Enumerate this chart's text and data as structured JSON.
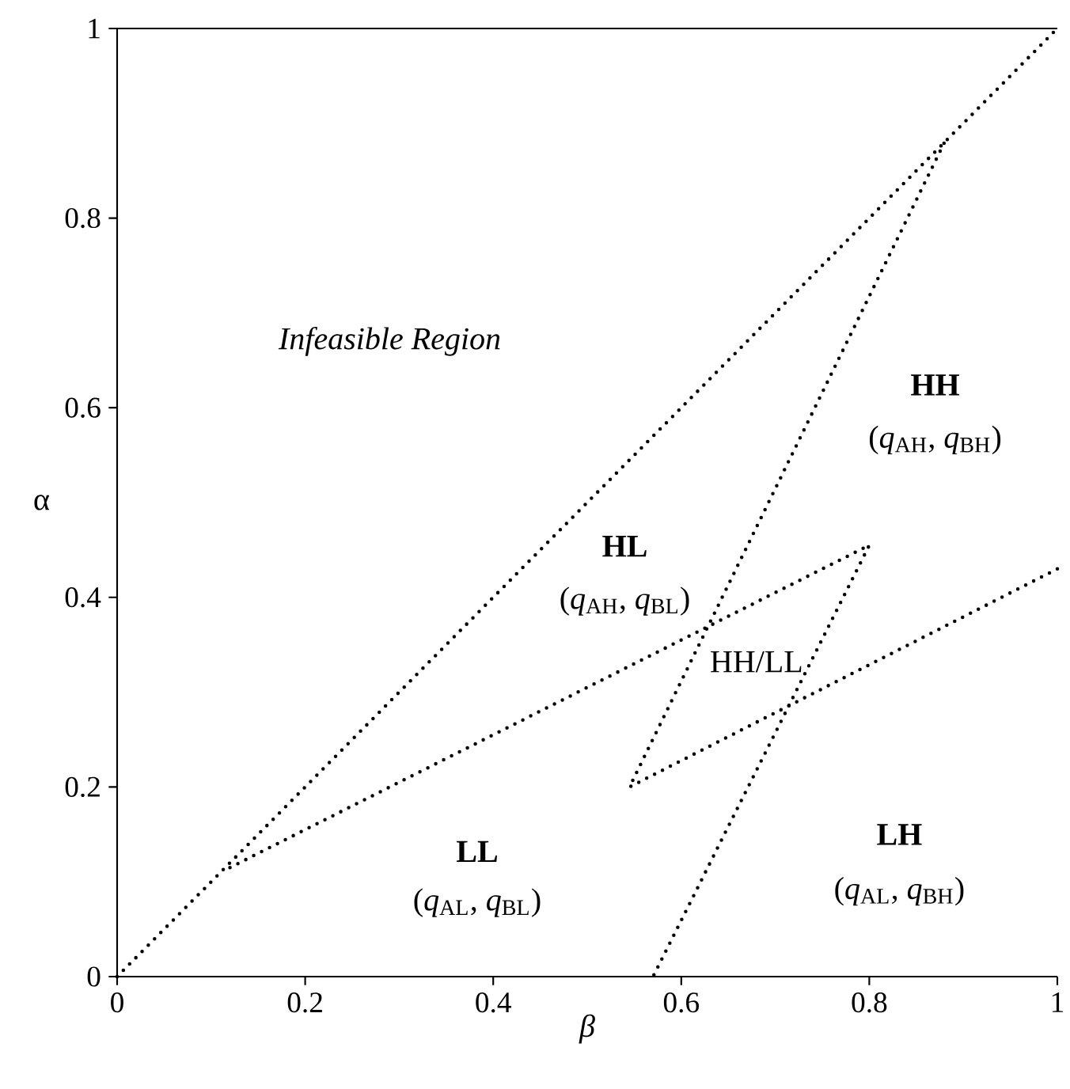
{
  "chart_data": {
    "type": "line",
    "xlabel": "β",
    "ylabel": "α",
    "xlim": [
      0,
      1
    ],
    "ylim": [
      0,
      1
    ],
    "xticks": [
      0,
      0.2,
      0.4,
      0.6,
      0.8,
      1
    ],
    "yticks": [
      0,
      0.2,
      0.4,
      0.6,
      0.8,
      1
    ],
    "grid": false,
    "marker": "none",
    "line_style": "dotted",
    "series": [
      {
        "color": "#000000",
        "x": [
          0,
          1
        ],
        "values": [
          0,
          1
        ]
      },
      {
        "color": "#000000",
        "x": [
          0.12,
          0.8,
          0.57
        ],
        "values": [
          0.115,
          0.455,
          0
        ]
      },
      {
        "color": "#000000",
        "x": [
          1,
          0.545,
          0.88
        ],
        "values": [
          0.43,
          0.2,
          0.88
        ]
      }
    ],
    "annotations": [
      "*Infeasible Region*",
      "**HH**",
      "(*q*$_{AH}$, *q*$_{BH}$)",
      "**HL**",
      "(*q*$_{AH}$, *q*$_{BL}$)",
      "HH/LL",
      "**LL**",
      "(*q*$_{AL}$, *q*$_{BL}$)",
      "**LH**",
      "(*q*$_{AL}$, *q*$_{BH}$)"
    ]
  }
}
